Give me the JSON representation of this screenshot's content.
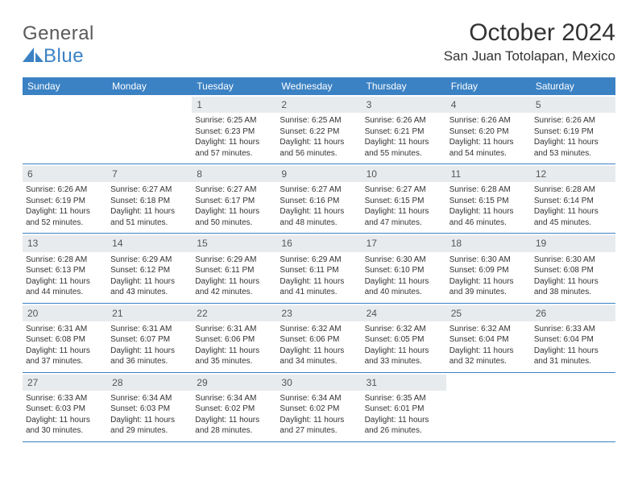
{
  "logo": {
    "text_a": "General",
    "text_b": "Blue"
  },
  "title": "October 2024",
  "location": "San Juan Totolapan, Mexico",
  "colors": {
    "header_blue": "#3b82c4",
    "band_gray": "#e8ebee",
    "text": "#333333",
    "logo_gray": "#5a5a5a"
  },
  "weekdays": [
    "Sunday",
    "Monday",
    "Tuesday",
    "Wednesday",
    "Thursday",
    "Friday",
    "Saturday"
  ],
  "weeks": [
    [
      null,
      null,
      {
        "n": "1",
        "sr": "6:25 AM",
        "ss": "6:23 PM",
        "dl": "11 hours and 57 minutes."
      },
      {
        "n": "2",
        "sr": "6:25 AM",
        "ss": "6:22 PM",
        "dl": "11 hours and 56 minutes."
      },
      {
        "n": "3",
        "sr": "6:26 AM",
        "ss": "6:21 PM",
        "dl": "11 hours and 55 minutes."
      },
      {
        "n": "4",
        "sr": "6:26 AM",
        "ss": "6:20 PM",
        "dl": "11 hours and 54 minutes."
      },
      {
        "n": "5",
        "sr": "6:26 AM",
        "ss": "6:19 PM",
        "dl": "11 hours and 53 minutes."
      }
    ],
    [
      {
        "n": "6",
        "sr": "6:26 AM",
        "ss": "6:19 PM",
        "dl": "11 hours and 52 minutes."
      },
      {
        "n": "7",
        "sr": "6:27 AM",
        "ss": "6:18 PM",
        "dl": "11 hours and 51 minutes."
      },
      {
        "n": "8",
        "sr": "6:27 AM",
        "ss": "6:17 PM",
        "dl": "11 hours and 50 minutes."
      },
      {
        "n": "9",
        "sr": "6:27 AM",
        "ss": "6:16 PM",
        "dl": "11 hours and 48 minutes."
      },
      {
        "n": "10",
        "sr": "6:27 AM",
        "ss": "6:15 PM",
        "dl": "11 hours and 47 minutes."
      },
      {
        "n": "11",
        "sr": "6:28 AM",
        "ss": "6:15 PM",
        "dl": "11 hours and 46 minutes."
      },
      {
        "n": "12",
        "sr": "6:28 AM",
        "ss": "6:14 PM",
        "dl": "11 hours and 45 minutes."
      }
    ],
    [
      {
        "n": "13",
        "sr": "6:28 AM",
        "ss": "6:13 PM",
        "dl": "11 hours and 44 minutes."
      },
      {
        "n": "14",
        "sr": "6:29 AM",
        "ss": "6:12 PM",
        "dl": "11 hours and 43 minutes."
      },
      {
        "n": "15",
        "sr": "6:29 AM",
        "ss": "6:11 PM",
        "dl": "11 hours and 42 minutes."
      },
      {
        "n": "16",
        "sr": "6:29 AM",
        "ss": "6:11 PM",
        "dl": "11 hours and 41 minutes."
      },
      {
        "n": "17",
        "sr": "6:30 AM",
        "ss": "6:10 PM",
        "dl": "11 hours and 40 minutes."
      },
      {
        "n": "18",
        "sr": "6:30 AM",
        "ss": "6:09 PM",
        "dl": "11 hours and 39 minutes."
      },
      {
        "n": "19",
        "sr": "6:30 AM",
        "ss": "6:08 PM",
        "dl": "11 hours and 38 minutes."
      }
    ],
    [
      {
        "n": "20",
        "sr": "6:31 AM",
        "ss": "6:08 PM",
        "dl": "11 hours and 37 minutes."
      },
      {
        "n": "21",
        "sr": "6:31 AM",
        "ss": "6:07 PM",
        "dl": "11 hours and 36 minutes."
      },
      {
        "n": "22",
        "sr": "6:31 AM",
        "ss": "6:06 PM",
        "dl": "11 hours and 35 minutes."
      },
      {
        "n": "23",
        "sr": "6:32 AM",
        "ss": "6:06 PM",
        "dl": "11 hours and 34 minutes."
      },
      {
        "n": "24",
        "sr": "6:32 AM",
        "ss": "6:05 PM",
        "dl": "11 hours and 33 minutes."
      },
      {
        "n": "25",
        "sr": "6:32 AM",
        "ss": "6:04 PM",
        "dl": "11 hours and 32 minutes."
      },
      {
        "n": "26",
        "sr": "6:33 AM",
        "ss": "6:04 PM",
        "dl": "11 hours and 31 minutes."
      }
    ],
    [
      {
        "n": "27",
        "sr": "6:33 AM",
        "ss": "6:03 PM",
        "dl": "11 hours and 30 minutes."
      },
      {
        "n": "28",
        "sr": "6:34 AM",
        "ss": "6:03 PM",
        "dl": "11 hours and 29 minutes."
      },
      {
        "n": "29",
        "sr": "6:34 AM",
        "ss": "6:02 PM",
        "dl": "11 hours and 28 minutes."
      },
      {
        "n": "30",
        "sr": "6:34 AM",
        "ss": "6:02 PM",
        "dl": "11 hours and 27 minutes."
      },
      {
        "n": "31",
        "sr": "6:35 AM",
        "ss": "6:01 PM",
        "dl": "11 hours and 26 minutes."
      },
      null,
      null
    ]
  ],
  "labels": {
    "sunrise": "Sunrise: ",
    "sunset": "Sunset: ",
    "daylight": "Daylight: "
  }
}
